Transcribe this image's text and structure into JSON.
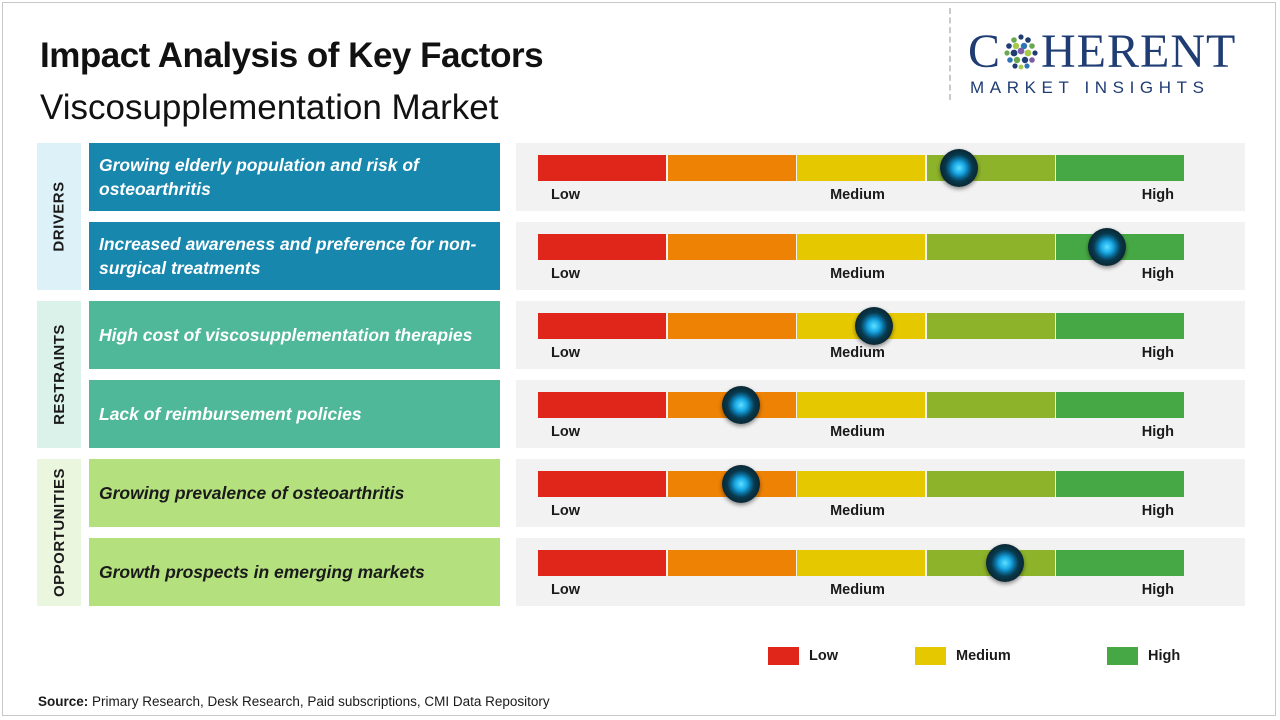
{
  "header": {
    "title": "Impact Analysis of Key Factors",
    "subtitle": "Viscosupplementation Market"
  },
  "logo": {
    "text_before": "C",
    "text_after": "HERENT",
    "tagline": "MARKET INSIGHTS",
    "color": "#1f3c73"
  },
  "chart_data": {
    "type": "gauge-table",
    "title": "Impact Analysis of Key Factors",
    "subtitle": "Viscosupplementation Market",
    "scale": {
      "min": 0,
      "max": 1,
      "labels": [
        "Low",
        "Medium",
        "High"
      ],
      "segment_colors": [
        "#e0261b",
        "#ee8204",
        "#e6c800",
        "#8db32a",
        "#46a844"
      ]
    },
    "categories": [
      {
        "name": "DRIVERS",
        "color": "#1787ad",
        "bg": "#ddf1f8"
      },
      {
        "name": "RESTRAINTS",
        "color": "#4fb898",
        "bg": "#daf2ea"
      },
      {
        "name": "OPPORTUNITIES",
        "color": "#b4e07e",
        "bg": "#eaf7de"
      }
    ],
    "factors": [
      {
        "category": "DRIVERS",
        "label": "Growing elderly population  and risk of osteoarthritis",
        "impact": 0.65
      },
      {
        "category": "DRIVERS",
        "label": "Increased awareness and preference for non-surgical treatments",
        "impact": 0.878
      },
      {
        "category": "RESTRAINTS",
        "label": "High cost of viscosupplementation  therapies",
        "impact": 0.518
      },
      {
        "category": "RESTRAINTS",
        "label": "Lack of reimbursement  policies",
        "impact": 0.313
      },
      {
        "category": "OPPORTUNITIES",
        "label": "Growing prevalence  of osteoarthritis",
        "impact": 0.313
      },
      {
        "category": "OPPORTUNITIES",
        "label": "Growth prospects in emerging markets",
        "impact": 0.72
      }
    ],
    "legend": [
      {
        "label": "Low",
        "color": "#e0261b"
      },
      {
        "label": "Medium",
        "color": "#e6c800"
      },
      {
        "label": "High",
        "color": "#46a844"
      }
    ]
  },
  "source": {
    "label": "Source:",
    "text": " Primary Research, Desk Research, Paid subscriptions, CMI Data Repository"
  }
}
